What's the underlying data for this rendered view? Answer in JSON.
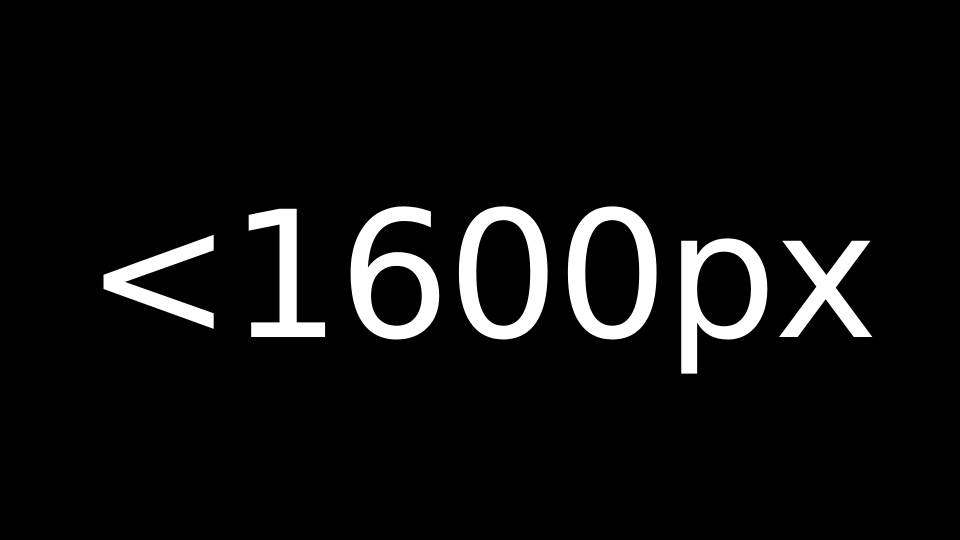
{
  "slide": {
    "text": "<1600px",
    "background_color": "#000000",
    "text_color": "#ffffff"
  }
}
